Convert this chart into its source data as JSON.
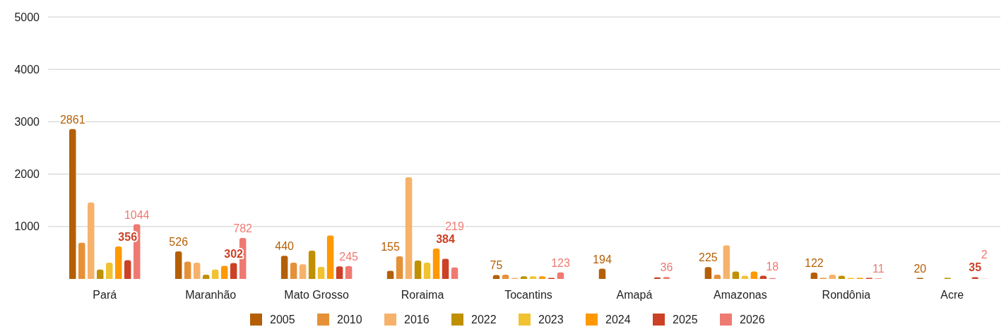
{
  "chart_data": {
    "type": "bar",
    "categories": [
      "Pará",
      "Maranhão",
      "Mato Grosso",
      "Roraima",
      "Tocantins",
      "Amapá",
      "Amazonas",
      "Rondônia",
      "Acre"
    ],
    "series": [
      {
        "name": "2005",
        "color": "#b45f06",
        "values": [
          2861,
          526,
          440,
          155,
          75,
          194,
          225,
          122,
          20
        ],
        "value_labels": [
          "2861",
          "526",
          "440",
          "155",
          "75",
          "194",
          "225",
          "122",
          "20"
        ]
      },
      {
        "name": "2010",
        "color": "#e69138",
        "values": [
          690,
          330,
          310,
          430,
          80,
          null,
          80,
          20,
          null
        ]
      },
      {
        "name": "2016",
        "color": "#f6b26b",
        "values": [
          1460,
          310,
          280,
          1940,
          20,
          null,
          640,
          80,
          null
        ]
      },
      {
        "name": "2022",
        "color": "#bf9000",
        "values": [
          180,
          80,
          540,
          350,
          50,
          null,
          140,
          60,
          20
        ]
      },
      {
        "name": "2023",
        "color": "#f1c232",
        "values": [
          310,
          180,
          230,
          310,
          50,
          null,
          60,
          20,
          null
        ]
      },
      {
        "name": "2024",
        "color": "#ff9900",
        "values": [
          620,
          250,
          830,
          580,
          50,
          null,
          140,
          20,
          null
        ]
      },
      {
        "name": "2025",
        "color": "#cc4125",
        "values": [
          356,
          302,
          240,
          384,
          20,
          30,
          60,
          20,
          35
        ],
        "value_labels": [
          "356",
          "302",
          null,
          "384",
          null,
          null,
          null,
          null,
          "35"
        ]
      },
      {
        "name": "2026",
        "color": "#ee7a72",
        "values": [
          1044,
          782,
          245,
          219,
          123,
          36,
          18,
          11,
          2
        ],
        "value_labels": [
          "1044",
          "782",
          "245",
          "219",
          "123",
          "36",
          "18",
          "11",
          "2"
        ]
      }
    ],
    "ylim": [
      0,
      5000
    ],
    "yticks": [
      1000,
      2000,
      3000,
      4000,
      5000
    ],
    "grid": "y",
    "legend": "bottom"
  }
}
